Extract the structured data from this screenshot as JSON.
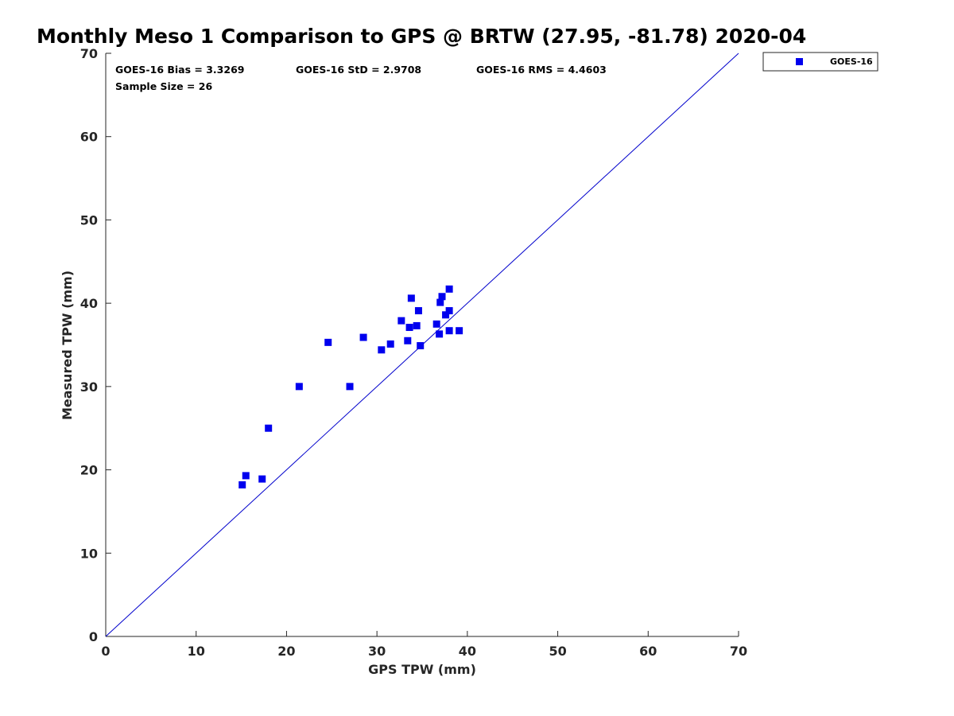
{
  "chart_data": {
    "type": "scatter",
    "title": "Monthly Meso 1 Comparison to GPS @ BRTW (27.95, -81.78) 2020-04",
    "xlabel": "GPS TPW (mm)",
    "ylabel": "Measured TPW (mm)",
    "xlim": [
      0,
      70
    ],
    "ylim": [
      0,
      70
    ],
    "xticks": [
      0,
      10,
      20,
      30,
      40,
      50,
      60,
      70
    ],
    "yticks": [
      0,
      10,
      20,
      30,
      40,
      50,
      60,
      70
    ],
    "grid": false,
    "legend": {
      "position": "outside-top-right",
      "entries": [
        "GOES-16"
      ]
    },
    "stats": {
      "bias": "GOES-16 Bias = 3.3269",
      "std": "GOES-16 StD = 2.9708",
      "rms": "GOES-16 RMS = 4.4603",
      "sample": "Sample Size = 26"
    },
    "reference_line": {
      "name": "1:1 line",
      "from": [
        0,
        0
      ],
      "to": [
        70,
        70
      ],
      "color": "#0000cc"
    },
    "series": [
      {
        "name": "GOES-16",
        "color": "#0000ee",
        "marker": "square",
        "points": [
          [
            15.1,
            18.2
          ],
          [
            15.5,
            19.3
          ],
          [
            17.3,
            18.9
          ],
          [
            18.0,
            25.0
          ],
          [
            21.4,
            30.0
          ],
          [
            24.6,
            35.3
          ],
          [
            27.0,
            30.0
          ],
          [
            28.5,
            35.9
          ],
          [
            30.5,
            34.4
          ],
          [
            31.5,
            35.1
          ],
          [
            32.7,
            37.9
          ],
          [
            33.4,
            35.5
          ],
          [
            33.6,
            37.1
          ],
          [
            33.8,
            40.6
          ],
          [
            34.4,
            37.3
          ],
          [
            34.6,
            39.1
          ],
          [
            34.8,
            34.9
          ],
          [
            36.6,
            37.5
          ],
          [
            36.9,
            36.3
          ],
          [
            37.0,
            40.1
          ],
          [
            37.2,
            40.8
          ],
          [
            37.6,
            38.6
          ],
          [
            38.0,
            36.7
          ],
          [
            38.0,
            39.1
          ],
          [
            38.0,
            41.7
          ],
          [
            39.1,
            36.7
          ]
        ]
      }
    ]
  }
}
